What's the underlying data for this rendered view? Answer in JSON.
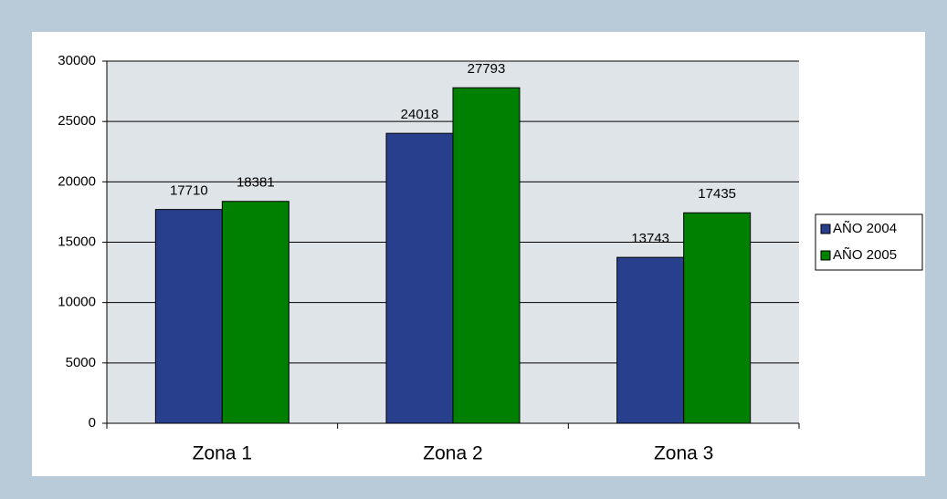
{
  "chart_data": {
    "type": "bar",
    "categories": [
      "Zona 1",
      "Zona 2",
      "Zona 3"
    ],
    "series": [
      {
        "name": "AÑO 2004",
        "color": "#283f8e",
        "values": [
          17710,
          24018,
          13743
        ]
      },
      {
        "name": "AÑO 2005",
        "color": "#008000",
        "values": [
          18381,
          27793,
          17435
        ]
      }
    ],
    "ylim": [
      0,
      30000
    ],
    "yticks": [
      0,
      5000,
      10000,
      15000,
      20000,
      25000,
      30000
    ],
    "grid": true,
    "legend": "right"
  }
}
